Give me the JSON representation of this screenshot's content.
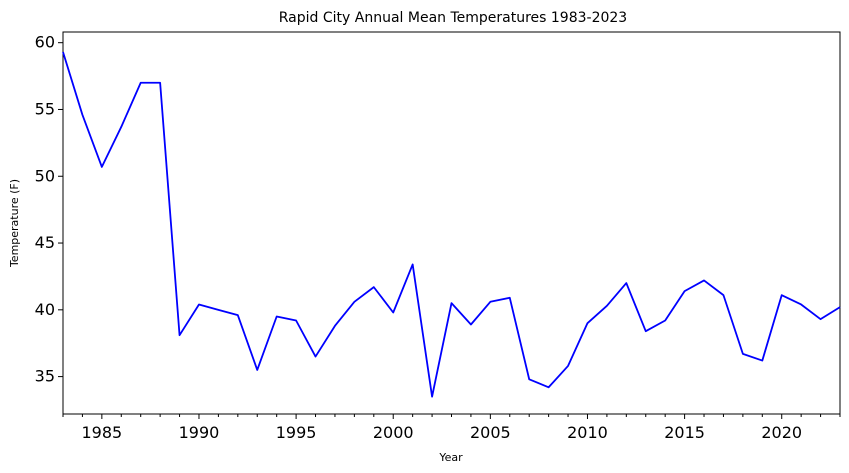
{
  "chart_data": {
    "type": "line",
    "title": "Rapid City Annual Mean Temperatures 1983-2023",
    "xlabel": "Year",
    "ylabel": "Temperature (F)",
    "xlim": [
      1983,
      2023
    ],
    "ylim": [
      32.2,
      60.8
    ],
    "x_major_ticks": [
      1985,
      1990,
      1995,
      2000,
      2005,
      2010,
      2015,
      2020
    ],
    "y_major_ticks": [
      35,
      40,
      45,
      50,
      55,
      60
    ],
    "grid": false,
    "line_color": "#0000ff",
    "series": [
      {
        "x": [
          1983,
          1984,
          1985,
          1986,
          1987,
          1988,
          1989,
          1990,
          1991,
          1992,
          1993,
          1994,
          1995,
          1996,
          1997,
          1998,
          1999,
          2000,
          2001,
          2002,
          2003,
          2004,
          2005,
          2006,
          2007,
          2008,
          2009,
          2010,
          2011,
          2012,
          2013,
          2014,
          2015,
          2016,
          2017,
          2018,
          2019,
          2020,
          2021,
          2022,
          2023
        ],
        "values": [
          59.3,
          54.6,
          50.7,
          53.7,
          57.0,
          57.0,
          38.1,
          40.4,
          40.0,
          39.6,
          35.5,
          39.5,
          39.2,
          36.5,
          38.8,
          40.6,
          41.7,
          39.8,
          43.4,
          33.5,
          40.5,
          38.9,
          40.6,
          40.9,
          34.8,
          34.2,
          35.8,
          39.0,
          40.3,
          42.0,
          38.4,
          39.2,
          41.4,
          42.2,
          41.1,
          36.7,
          36.2,
          41.1,
          40.4,
          39.3,
          40.2
        ]
      }
    ]
  }
}
